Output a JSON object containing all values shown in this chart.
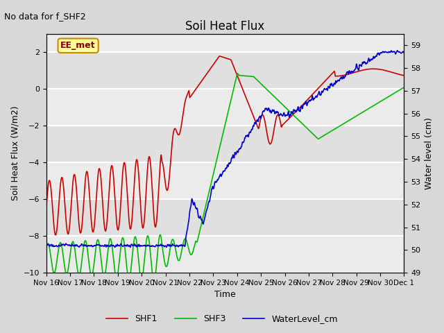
{
  "title": "Soil Heat Flux",
  "subtitle": "No data for f_SHF2",
  "xlabel": "Time",
  "ylabel_left": "Soil Heat Flux (W/m2)",
  "ylabel_right": "Water level (cm)",
  "ylim_left": [
    -10,
    3
  ],
  "ylim_right": [
    49,
    59.5
  ],
  "bg_color": "#d8d8d8",
  "plot_bg_color": "#ebebeb",
  "grid_color": "#ffffff",
  "shf1_color": "#cc0000",
  "shf3_color": "#00bb00",
  "water_color": "#0000cc",
  "annotation_text": "EE_met",
  "annotation_box_color": "#ffff99",
  "annotation_box_edge": "#cc8800",
  "xtick_labels": [
    "Nov 16",
    "Nov 17",
    "Nov 18",
    "Nov 19",
    "Nov 20",
    "Nov 21",
    "Nov 22",
    "Nov 23",
    "Nov 24",
    "Nov 25",
    "Nov 26",
    "Nov 27",
    "Nov 28",
    "Nov 29",
    "Nov 30",
    "Dec 1"
  ]
}
